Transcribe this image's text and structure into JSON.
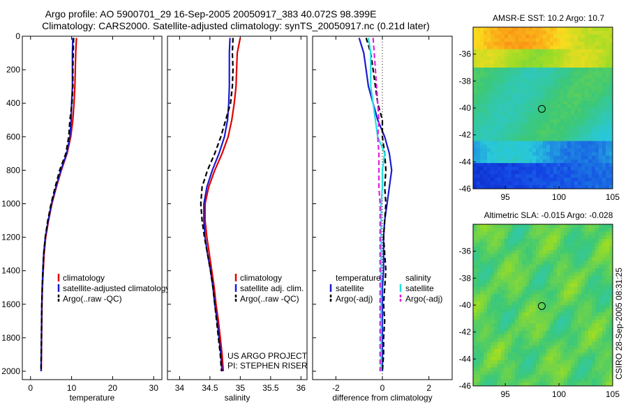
{
  "title_line1": "Argo profile: AO 5900701_29 16-Sep-2005 20050917_383 40.072S 98.399E",
  "title_line2": "Climatology: CARS2000. Satellite-adjusted climatology: synTS_20050917.nc (0.21d later)",
  "side_label": "CSIRO 28-Sep-2005 08:31:25",
  "credit_line1": "US ARGO PROJECT",
  "credit_line2": "PI: STEPHEN RISER",
  "colors": {
    "red": "#e00000",
    "blue": "#1a1ad0",
    "black": "#000000",
    "cyan": "#20e0e0",
    "magenta": "#e020e0"
  },
  "chart_data": [
    {
      "type": "line",
      "xlabel": "temperature",
      "ylabel": "",
      "xlim": [
        -2,
        32
      ],
      "ylim": [
        2050,
        0
      ],
      "y_reversed": true,
      "xticks": [
        0,
        10,
        20,
        30
      ],
      "yticks": [
        0,
        200,
        400,
        600,
        800,
        1000,
        1200,
        1400,
        1600,
        1800,
        2000
      ],
      "y": [
        10,
        100,
        200,
        300,
        400,
        500,
        600,
        700,
        800,
        900,
        1000,
        1100,
        1200,
        1300,
        1400,
        1500,
        1600,
        1700,
        1800,
        1900,
        2000
      ],
      "legend": [
        "climatology",
        "satellite-adjusted climatology",
        "Argo(..raw -QC)"
      ],
      "series": [
        {
          "name": "climatology",
          "color": "red",
          "dash": "solid",
          "values": [
            11.2,
            11.0,
            10.9,
            10.8,
            10.6,
            10.3,
            9.8,
            8.9,
            7.5,
            6.3,
            5.2,
            4.4,
            3.7,
            3.3,
            3.1,
            2.9,
            2.8,
            2.75,
            2.7,
            2.65,
            2.6
          ]
        },
        {
          "name": "satellite-adjusted climatology",
          "color": "blue",
          "dash": "solid",
          "values": [
            10.3,
            10.2,
            10.2,
            10.2,
            10.0,
            9.9,
            9.6,
            8.8,
            7.4,
            6.2,
            5.1,
            4.3,
            3.6,
            3.2,
            3.0,
            2.85,
            2.75,
            2.7,
            2.65,
            2.6,
            2.55
          ]
        },
        {
          "name": "Argo(..raw -QC)",
          "color": "black",
          "dash": "dash",
          "values": [
            10.5,
            10.4,
            10.3,
            10.3,
            10.1,
            9.6,
            9.3,
            8.6,
            7.1,
            6.0,
            5.0,
            4.2,
            3.6,
            3.2,
            3.0,
            2.85,
            2.75,
            2.7,
            2.65,
            2.6,
            2.55
          ]
        }
      ]
    },
    {
      "type": "line",
      "xlabel": "salinity",
      "ylabel": "",
      "xlim": [
        33.8,
        36.1
      ],
      "ylim": [
        2050,
        0
      ],
      "y_reversed": true,
      "xticks": [
        34,
        34.5,
        35,
        35.5,
        36
      ],
      "y": [
        10,
        100,
        200,
        300,
        400,
        500,
        600,
        700,
        800,
        900,
        1000,
        1100,
        1200,
        1300,
        1400,
        1500,
        1600,
        1700,
        1800,
        1900,
        2000
      ],
      "legend": [
        "climatology",
        "satellite adj. clim.",
        "Argo(..raw -QC)"
      ],
      "series": [
        {
          "name": "climatology",
          "color": "red",
          "dash": "solid",
          "values": [
            35.0,
            34.95,
            34.94,
            34.93,
            34.9,
            34.86,
            34.8,
            34.7,
            34.58,
            34.48,
            34.42,
            34.42,
            34.45,
            34.49,
            34.53,
            34.57,
            34.6,
            34.64,
            34.67,
            34.7,
            34.72
          ]
        },
        {
          "name": "satellite adj. clim.",
          "color": "blue",
          "dash": "solid",
          "values": [
            34.83,
            34.82,
            34.82,
            34.82,
            34.81,
            34.79,
            34.74,
            34.65,
            34.54,
            34.45,
            34.4,
            34.4,
            34.42,
            34.46,
            34.51,
            34.55,
            34.58,
            34.62,
            34.65,
            34.68,
            34.7
          ]
        },
        {
          "name": "Argo(..raw -QC)",
          "color": "black",
          "dash": "dash",
          "values": [
            34.88,
            34.87,
            34.88,
            34.87,
            34.84,
            34.76,
            34.68,
            34.58,
            34.46,
            34.37,
            34.35,
            34.37,
            34.41,
            34.46,
            34.51,
            34.55,
            34.58,
            34.61,
            34.64,
            34.67,
            34.69
          ]
        }
      ]
    },
    {
      "type": "line",
      "xlabel": "difference from climatology",
      "ylabel": "",
      "xlim": [
        -3,
        3
      ],
      "ylim": [
        2050,
        0
      ],
      "y_reversed": true,
      "xticks": [
        -2,
        0,
        2
      ],
      "zero_line": "dotted",
      "y": [
        10,
        100,
        200,
        300,
        400,
        500,
        600,
        700,
        800,
        900,
        1000,
        1100,
        1200,
        1300,
        1400,
        1500,
        1600,
        1700,
        1800,
        1900,
        2000
      ],
      "legend_groups": [
        {
          "header": "temperature",
          "items": [
            "satellite",
            "Argo(-adj)"
          ]
        },
        {
          "header": "salinity",
          "items": [
            "satellite",
            "Argo(-adj)"
          ]
        }
      ],
      "series": [
        {
          "name": "satellite",
          "group": "temperature",
          "color": "blue",
          "dash": "solid",
          "values": [
            -1.0,
            -0.8,
            -0.7,
            -0.6,
            -0.4,
            -0.2,
            0.1,
            0.3,
            0.4,
            0.3,
            0.2,
            0.1,
            0.05,
            0.05,
            0.05,
            0.0,
            0.0,
            0.0,
            0.0,
            0.0,
            0.0
          ]
        },
        {
          "name": "Argo(-adj)",
          "group": "temperature",
          "color": "black",
          "dash": "dash",
          "values": [
            -0.7,
            -0.5,
            -0.4,
            -0.3,
            -0.2,
            0.0,
            0.0,
            0.1,
            0.15,
            0.1,
            0.15,
            0.1,
            0.05,
            0.1,
            0.15,
            0.1,
            0.05,
            0.1,
            0.05,
            0.05,
            0.0
          ]
        },
        {
          "name": "satellite",
          "group": "salinity",
          "color": "cyan",
          "dash": "solid",
          "values": [
            -0.6,
            -0.5,
            -0.5,
            -0.5,
            -0.4,
            -0.3,
            -0.2,
            0.1,
            0.0,
            0.0,
            -0.05,
            -0.05,
            -0.05,
            -0.05,
            -0.05,
            -0.05,
            -0.05,
            -0.05,
            -0.05,
            -0.05,
            -0.05
          ]
        },
        {
          "name": "Argo(-adj)",
          "group": "salinity",
          "color": "magenta",
          "dash": "dash",
          "values": [
            -0.4,
            -0.35,
            -0.3,
            -0.25,
            -0.2,
            -0.15,
            -0.2,
            -0.15,
            -0.15,
            -0.15,
            -0.1,
            -0.1,
            -0.1,
            -0.1,
            -0.1,
            -0.1,
            -0.1,
            -0.1,
            -0.1,
            -0.1,
            -0.1
          ]
        }
      ]
    },
    {
      "type": "heatmap",
      "title": "AMSR-E SST: 10.2  Argo: 10.7",
      "xlim": [
        92,
        105
      ],
      "ylim": [
        -46,
        -34
      ],
      "xticks": [
        95,
        100,
        105
      ],
      "yticks": [
        -36,
        -38,
        -40,
        -42,
        -44,
        -46
      ],
      "marker": {
        "lon": 98.4,
        "lat": -40.07,
        "shape": "circle"
      }
    },
    {
      "type": "heatmap",
      "title": "Altimetric SLA: -0.015  Argo: -0.028",
      "xlim": [
        92,
        105
      ],
      "ylim": [
        -46,
        -34
      ],
      "xticks": [
        95,
        100,
        105
      ],
      "yticks": [
        -36,
        -38,
        -40,
        -42,
        -44,
        -46
      ],
      "marker": {
        "lon": 98.4,
        "lat": -40.07,
        "shape": "circle"
      }
    }
  ]
}
